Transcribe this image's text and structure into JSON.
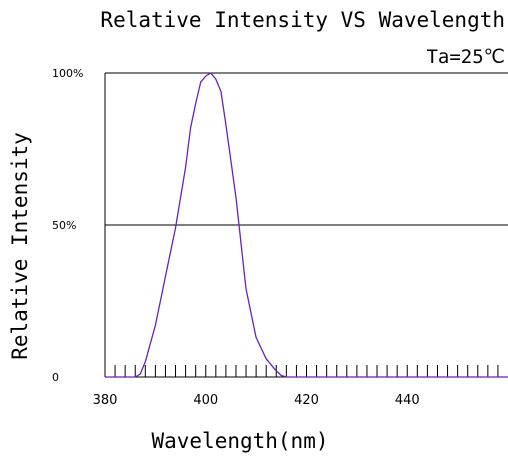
{
  "chart_data": {
    "type": "line",
    "title": "Relative Intensity VS Wavelength",
    "subtitle": "Ta=25℃",
    "xlabel": "Wavelength(nm)",
    "ylabel": "Relative Intensity",
    "xlim": [
      380,
      460
    ],
    "ylim": [
      0,
      100
    ],
    "x_ticks": [
      380,
      400,
      420,
      440
    ],
    "x_minor_step": 2,
    "y_ticks": [
      {
        "value": 0,
        "label": "0"
      },
      {
        "value": 50,
        "label": "50%"
      },
      {
        "value": 100,
        "label": "100%"
      }
    ],
    "reference_lines": [
      50
    ],
    "grid": false,
    "colors": {
      "series": "#6a1fbf",
      "axis": "#000000"
    },
    "series": [
      {
        "x": [
          380,
          386,
          387,
          388,
          390,
          392,
          394,
          396,
          397,
          398,
          399,
          400,
          401,
          402,
          403,
          404,
          406,
          408,
          410,
          412,
          414,
          415,
          416,
          460
        ],
        "y": [
          0,
          0,
          1,
          5,
          17,
          33,
          49,
          69,
          82,
          90,
          97,
          99,
          100,
          98,
          94,
          83,
          59,
          29,
          13,
          6,
          2,
          0.5,
          0,
          0
        ]
      }
    ]
  }
}
